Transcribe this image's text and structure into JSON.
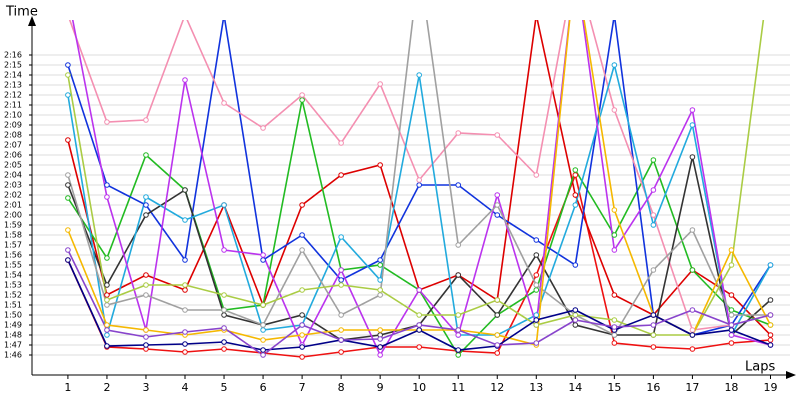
{
  "chart_data": {
    "type": "line",
    "y_title": "Time",
    "x_title": "Laps",
    "x": [
      1,
      2,
      3,
      4,
      5,
      6,
      7,
      8,
      9,
      10,
      11,
      12,
      13,
      14,
      15,
      16,
      17,
      18,
      19
    ],
    "xlim": [
      0.08,
      19.5
    ],
    "xticks": [
      1,
      2,
      3,
      4,
      5,
      6,
      7,
      8,
      9,
      10,
      11,
      12,
      13,
      14,
      15,
      16,
      17,
      18,
      19
    ],
    "ylim": [
      104,
      139.5
    ],
    "yticks": [
      {
        "value": 106,
        "label": "1:46"
      },
      {
        "value": 107,
        "label": "1:47"
      },
      {
        "value": 108,
        "label": "1:48"
      },
      {
        "value": 109,
        "label": "1:49"
      },
      {
        "value": 110,
        "label": "1:50"
      },
      {
        "value": 111,
        "label": "1:51"
      },
      {
        "value": 112,
        "label": "1:52"
      },
      {
        "value": 113,
        "label": "1:53"
      },
      {
        "value": 114,
        "label": "1:54"
      },
      {
        "value": 115,
        "label": "1:55"
      },
      {
        "value": 116,
        "label": "1:56"
      },
      {
        "value": 117,
        "label": "1:57"
      },
      {
        "value": 118,
        "label": "1:58"
      },
      {
        "value": 119,
        "label": "1:59"
      },
      {
        "value": 120,
        "label": "2:00"
      },
      {
        "value": 121,
        "label": "2:01"
      },
      {
        "value": 122,
        "label": "2:02"
      },
      {
        "value": 123,
        "label": "2:03"
      },
      {
        "value": 124,
        "label": "2:04"
      },
      {
        "value": 125,
        "label": "2:05"
      },
      {
        "value": 126,
        "label": "2:06"
      },
      {
        "value": 127,
        "label": "2:07"
      },
      {
        "value": 128,
        "label": "2:08"
      },
      {
        "value": 129,
        "label": "2:09"
      },
      {
        "value": 130,
        "label": "2:10"
      },
      {
        "value": 131,
        "label": "2:11"
      },
      {
        "value": 132,
        "label": "2:12"
      },
      {
        "value": 133,
        "label": "2:13"
      },
      {
        "value": 134,
        "label": "2:14"
      },
      {
        "value": 135,
        "label": "2:15"
      },
      {
        "value": 136,
        "label": "2:16"
      }
    ],
    "grid": true,
    "series": [
      {
        "color": "#ee1111",
        "values": [
          115.5,
          106.8,
          106.6,
          106.3,
          106.6,
          106.2,
          105.8,
          106.3,
          106.8,
          106.8,
          106.4,
          106.2,
          114,
          124,
          107.2,
          106.8,
          106.6,
          107.2,
          107.5
        ]
      },
      {
        "color": "#dd0000",
        "values": [
          127.5,
          112,
          114,
          112.5,
          121,
          111,
          121,
          124,
          125,
          112.5,
          114,
          111.5,
          140,
          122,
          112,
          110,
          114.5,
          112,
          108
        ]
      },
      {
        "color": "#22bb22",
        "values": [
          121.7,
          115.7,
          126,
          122.5,
          110.5,
          111,
          131.5,
          114.5,
          115,
          112.5,
          106,
          110,
          112.5,
          124.5,
          118,
          125.5,
          114.5,
          110.5,
          109
        ]
      },
      {
        "color": "#1133dd",
        "values": [
          135,
          123,
          121,
          115.5,
          140,
          115.5,
          118,
          113.5,
          115.5,
          123,
          123,
          120,
          117.5,
          115,
          140,
          110,
          108,
          109,
          115
        ]
      },
      {
        "color": "#f48fb1",
        "values": [
          140,
          129.3,
          129.5,
          140,
          131.2,
          128.7,
          132,
          127.2,
          133.1,
          123.5,
          128.2,
          128,
          124,
          145,
          130.5,
          120,
          108.5,
          109,
          110
        ]
      },
      {
        "color": "#333333",
        "values": [
          123,
          113,
          120,
          122.5,
          110,
          109,
          110,
          107.5,
          108,
          109,
          114,
          110,
          116,
          109,
          108,
          108,
          125.8,
          108,
          111.5
        ]
      },
      {
        "color": "#22aadd",
        "values": [
          132,
          108,
          121.8,
          119.5,
          121,
          108.5,
          109,
          117.8,
          113.5,
          134,
          108,
          108,
          110,
          121,
          135,
          119,
          129,
          108,
          115
        ]
      },
      {
        "color": "#bb33ee",
        "values": [
          142,
          121.8,
          108.5,
          133.5,
          116.5,
          116,
          107,
          114.5,
          106,
          112.5,
          108,
          122,
          109,
          145,
          116.5,
          122.5,
          130.5,
          108,
          107
        ]
      },
      {
        "color": "#a0a0a0",
        "values": [
          124,
          111,
          112,
          110.5,
          110.5,
          109,
          116.5,
          110,
          112,
          145,
          117,
          121,
          113,
          110,
          108,
          114.5,
          118.5,
          110,
          110
        ]
      },
      {
        "color": "#aacc44",
        "values": [
          134,
          111.5,
          113,
          113,
          112,
          111,
          112.5,
          113,
          112.5,
          110,
          110,
          111.5,
          109,
          110,
          109.5,
          108,
          108,
          115,
          145
        ]
      },
      {
        "color": "#f5b800",
        "values": [
          118.5,
          109,
          108.5,
          108,
          108.5,
          107.5,
          108,
          108.5,
          108.5,
          108.5,
          108.5,
          108,
          107,
          145,
          120.5,
          110,
          108,
          116.5,
          109
        ]
      },
      {
        "color": "#000088",
        "values": [
          115.5,
          106.9,
          107,
          107.1,
          107.3,
          106.5,
          106.8,
          107.5,
          106.8,
          108.5,
          106.5,
          106.9,
          109.5,
          110.5,
          108.5,
          110,
          108,
          108.5,
          107
        ]
      },
      {
        "color": "#8844cc",
        "values": [
          116.5,
          108.5,
          107.8,
          108.3,
          108.7,
          106,
          109,
          107.5,
          107.6,
          109,
          108.5,
          107,
          107.2,
          109.5,
          108.8,
          109,
          110.5,
          109,
          110
        ]
      }
    ]
  }
}
